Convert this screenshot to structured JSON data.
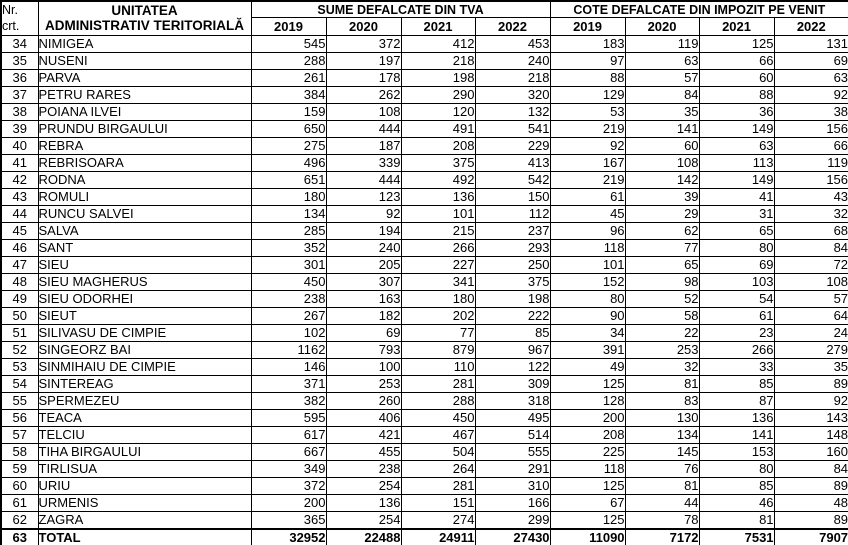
{
  "table": {
    "header": {
      "nr_line1": "Nr.",
      "nr_line2": "crt.",
      "unit_line1": "UNITATEA",
      "unit_line2": "ADMINISTRATIV TERITORIALĂ",
      "group_tva": "SUME DEFALCATE DIN TVA",
      "group_impozit": "COTE DEFALCATE DIN IMPOZIT PE VENIT",
      "years": [
        "2019",
        "2020",
        "2021",
        "2022"
      ]
    },
    "colors": {
      "border": "#000000",
      "text": "#000000",
      "background": "#ffffff"
    },
    "rows": [
      {
        "nr": "34",
        "name": "NIMIGEA",
        "tva": [
          "545",
          "372",
          "412",
          "453"
        ],
        "impozit": [
          "183",
          "119",
          "125",
          "131"
        ]
      },
      {
        "nr": "35",
        "name": "NUSENI",
        "tva": [
          "288",
          "197",
          "218",
          "240"
        ],
        "impozit": [
          "97",
          "63",
          "66",
          "69"
        ]
      },
      {
        "nr": "36",
        "name": "PARVA",
        "tva": [
          "261",
          "178",
          "198",
          "218"
        ],
        "impozit": [
          "88",
          "57",
          "60",
          "63"
        ]
      },
      {
        "nr": "37",
        "name": "PETRU RARES",
        "tva": [
          "384",
          "262",
          "290",
          "320"
        ],
        "impozit": [
          "129",
          "84",
          "88",
          "92"
        ]
      },
      {
        "nr": "38",
        "name": "POIANA ILVEI",
        "tva": [
          "159",
          "108",
          "120",
          "132"
        ],
        "impozit": [
          "53",
          "35",
          "36",
          "38"
        ]
      },
      {
        "nr": "39",
        "name": "PRUNDU BIRGAULUI",
        "tva": [
          "650",
          "444",
          "491",
          "541"
        ],
        "impozit": [
          "219",
          "141",
          "149",
          "156"
        ]
      },
      {
        "nr": "40",
        "name": "REBRA",
        "tva": [
          "275",
          "187",
          "208",
          "229"
        ],
        "impozit": [
          "92",
          "60",
          "63",
          "66"
        ]
      },
      {
        "nr": "41",
        "name": "REBRISOARA",
        "tva": [
          "496",
          "339",
          "375",
          "413"
        ],
        "impozit": [
          "167",
          "108",
          "113",
          "119"
        ]
      },
      {
        "nr": "42",
        "name": "RODNA",
        "tva": [
          "651",
          "444",
          "492",
          "542"
        ],
        "impozit": [
          "219",
          "142",
          "149",
          "156"
        ]
      },
      {
        "nr": "43",
        "name": "ROMULI",
        "tva": [
          "180",
          "123",
          "136",
          "150"
        ],
        "impozit": [
          "61",
          "39",
          "41",
          "43"
        ]
      },
      {
        "nr": "44",
        "name": "RUNCU SALVEI",
        "tva": [
          "134",
          "92",
          "101",
          "112"
        ],
        "impozit": [
          "45",
          "29",
          "31",
          "32"
        ]
      },
      {
        "nr": "45",
        "name": "SALVA",
        "tva": [
          "285",
          "194",
          "215",
          "237"
        ],
        "impozit": [
          "96",
          "62",
          "65",
          "68"
        ]
      },
      {
        "nr": "46",
        "name": "SANT",
        "tva": [
          "352",
          "240",
          "266",
          "293"
        ],
        "impozit": [
          "118",
          "77",
          "80",
          "84"
        ]
      },
      {
        "nr": "47",
        "name": "SIEU",
        "tva": [
          "301",
          "205",
          "227",
          "250"
        ],
        "impozit": [
          "101",
          "65",
          "69",
          "72"
        ]
      },
      {
        "nr": "48",
        "name": "SIEU MAGHERUS",
        "tva": [
          "450",
          "307",
          "341",
          "375"
        ],
        "impozit": [
          "152",
          "98",
          "103",
          "108"
        ]
      },
      {
        "nr": "49",
        "name": "SIEU ODORHEI",
        "tva": [
          "238",
          "163",
          "180",
          "198"
        ],
        "impozit": [
          "80",
          "52",
          "54",
          "57"
        ]
      },
      {
        "nr": "50",
        "name": "SIEUT",
        "tva": [
          "267",
          "182",
          "202",
          "222"
        ],
        "impozit": [
          "90",
          "58",
          "61",
          "64"
        ]
      },
      {
        "nr": "51",
        "name": "SILIVASU DE CIMPIE",
        "tva": [
          "102",
          "69",
          "77",
          "85"
        ],
        "impozit": [
          "34",
          "22",
          "23",
          "24"
        ]
      },
      {
        "nr": "52",
        "name": "SINGEORZ BAI",
        "tva": [
          "1162",
          "793",
          "879",
          "967"
        ],
        "impozit": [
          "391",
          "253",
          "266",
          "279"
        ]
      },
      {
        "nr": "53",
        "name": "SINMIHAIU DE CIMPIE",
        "tva": [
          "146",
          "100",
          "110",
          "122"
        ],
        "impozit": [
          "49",
          "32",
          "33",
          "35"
        ]
      },
      {
        "nr": "54",
        "name": "SINTEREAG",
        "tva": [
          "371",
          "253",
          "281",
          "309"
        ],
        "impozit": [
          "125",
          "81",
          "85",
          "89"
        ]
      },
      {
        "nr": "55",
        "name": "SPERMEZEU",
        "tva": [
          "382",
          "260",
          "288",
          "318"
        ],
        "impozit": [
          "128",
          "83",
          "87",
          "92"
        ]
      },
      {
        "nr": "56",
        "name": "TEACA",
        "tva": [
          "595",
          "406",
          "450",
          "495"
        ],
        "impozit": [
          "200",
          "130",
          "136",
          "143"
        ]
      },
      {
        "nr": "57",
        "name": "TELCIU",
        "tva": [
          "617",
          "421",
          "467",
          "514"
        ],
        "impozit": [
          "208",
          "134",
          "141",
          "148"
        ]
      },
      {
        "nr": "58",
        "name": "TIHA BIRGAULUI",
        "tva": [
          "667",
          "455",
          "504",
          "555"
        ],
        "impozit": [
          "225",
          "145",
          "153",
          "160"
        ]
      },
      {
        "nr": "59",
        "name": "TIRLISUA",
        "tva": [
          "349",
          "238",
          "264",
          "291"
        ],
        "impozit": [
          "118",
          "76",
          "80",
          "84"
        ]
      },
      {
        "nr": "60",
        "name": "URIU",
        "tva": [
          "372",
          "254",
          "281",
          "310"
        ],
        "impozit": [
          "125",
          "81",
          "85",
          "89"
        ]
      },
      {
        "nr": "61",
        "name": "URMENIS",
        "tva": [
          "200",
          "136",
          "151",
          "166"
        ],
        "impozit": [
          "67",
          "44",
          "46",
          "48"
        ]
      },
      {
        "nr": "62",
        "name": "ZAGRA",
        "tva": [
          "365",
          "254",
          "274",
          "299"
        ],
        "impozit": [
          "125",
          "78",
          "81",
          "89"
        ]
      },
      {
        "nr": "63",
        "name": "TOTAL",
        "is_total": true,
        "tva": [
          "32952",
          "22488",
          "24911",
          "27430"
        ],
        "impozit": [
          "11090",
          "7172",
          "7531",
          "7907"
        ]
      }
    ]
  }
}
